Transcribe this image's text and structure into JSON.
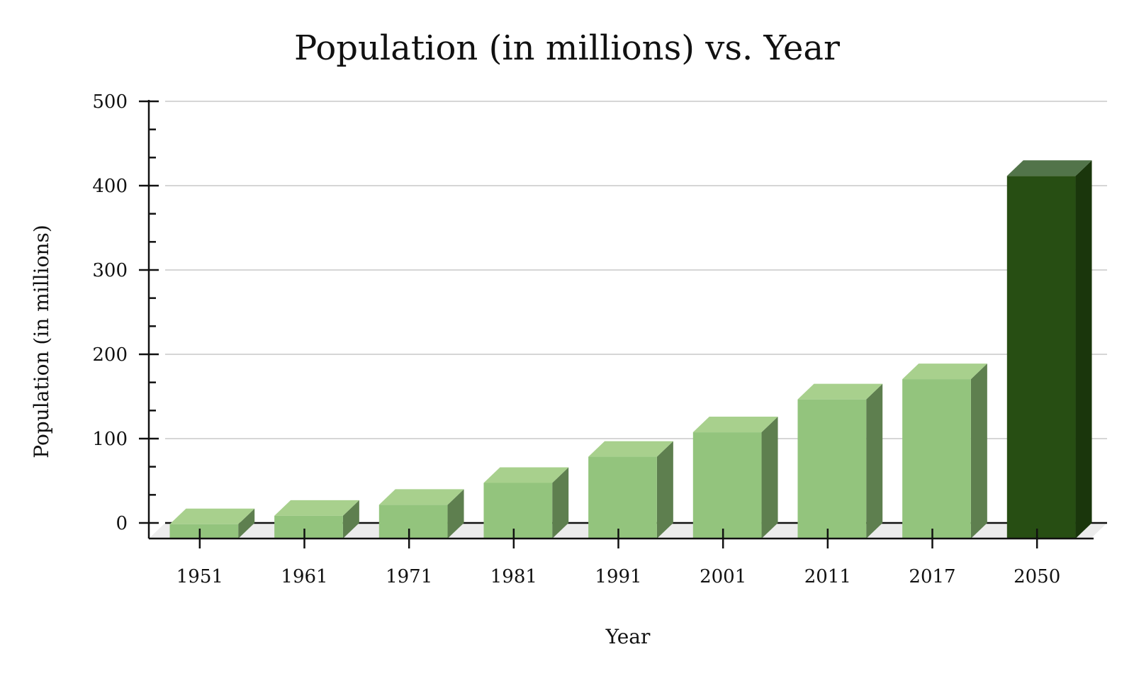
{
  "chart_data": {
    "type": "bar",
    "title": "Population (in millions) vs. Year",
    "xlabel": "Year",
    "ylabel": "Population (in millions)",
    "categories": [
      "1951",
      "1961",
      "1971",
      "1981",
      "1991",
      "2001",
      "2011",
      "2017",
      "2050"
    ],
    "values": [
      17,
      27,
      40,
      66,
      97,
      126,
      165,
      189,
      430
    ],
    "ylim": [
      0,
      500
    ],
    "yticks": [
      0,
      100,
      200,
      300,
      400,
      500
    ],
    "grid": true,
    "legend": "none",
    "colors": {
      "bar_front": "#93c47d",
      "bar_top": "#a8d08d",
      "bar_side": "#5e7f4f",
      "highlight_front": "#274e13",
      "highlight_top": "#52744a",
      "highlight_side": "#1a360c"
    },
    "highlight_index": 8
  }
}
